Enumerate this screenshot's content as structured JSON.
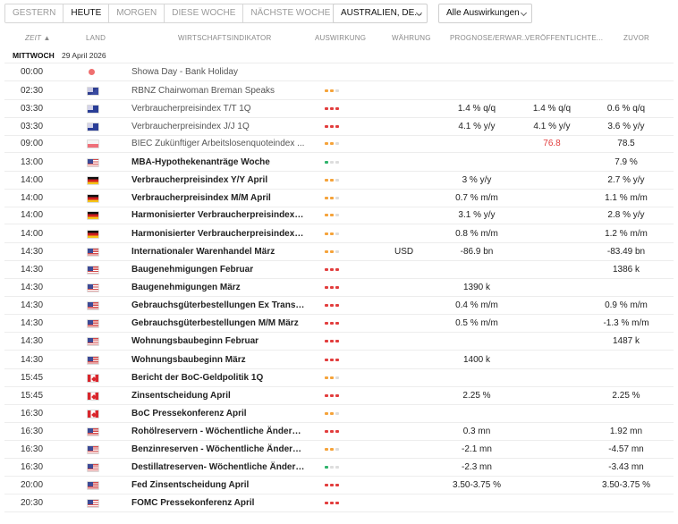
{
  "toolbar": {
    "tabs": [
      "GESTERN",
      "HEUTE",
      "MORGEN",
      "DIESE WOCHE",
      "NÄCHSTE WOCHE"
    ],
    "active_tab": "HEUTE",
    "country_filter": "AUSTRALIEN, DE...",
    "impact_filter": "Alle Auswirkungen"
  },
  "columns": {
    "time": "ZEIT ▲",
    "country": "LAND",
    "indicator": "WIRTSCHAFTSINDIKATOR",
    "impact": "AUSWIRKUNG",
    "currency": "WÄHRUNG",
    "forecast": "PROGNOSE/ERWAR...",
    "actual": "VERÖFFENTLICHTE...",
    "previous": "ZUVOR"
  },
  "day": {
    "name": "MITTWOCH",
    "date": "29 April 2026"
  },
  "events": [
    {
      "time": "00:00",
      "country": "holiday",
      "name": "Showa Day - Bank Holiday",
      "style": "light",
      "impact": "none",
      "currency": "",
      "forecast": "",
      "actual": "",
      "previous": ""
    },
    {
      "time": "02:30",
      "country": "nz",
      "name": "RBNZ Chairwoman Breman Speaks",
      "style": "light",
      "impact": "med",
      "currency": "",
      "forecast": "",
      "actual": "",
      "previous": ""
    },
    {
      "time": "03:30",
      "country": "au",
      "name": "Verbraucherpreisindex T/T 1Q",
      "style": "light",
      "impact": "high",
      "currency": "",
      "forecast": "1.4 % q/q",
      "actual": "1.4 % q/q",
      "previous": "0.6 % q/q"
    },
    {
      "time": "03:30",
      "country": "au",
      "name": "Verbraucherpreisindex J/J 1Q",
      "style": "light",
      "impact": "high",
      "currency": "",
      "forecast": "4.1 % y/y",
      "actual": "4.1 % y/y",
      "previous": "3.6 % y/y"
    },
    {
      "time": "09:00",
      "country": "pl",
      "name": "BIEC Zukünftiger Arbeitslosenquoteindex ...",
      "style": "light",
      "impact": "med",
      "currency": "",
      "forecast": "",
      "actual": "76.8",
      "actual_color": "red",
      "previous": "78.5"
    },
    {
      "time": "13:00",
      "country": "us",
      "name": "MBA-Hypothekenanträge Woche",
      "style": "bold",
      "impact": "low",
      "currency": "",
      "forecast": "",
      "actual": "",
      "previous": "7.9 %"
    },
    {
      "time": "14:00",
      "country": "de",
      "name": "Verbraucherpreisindex Y/Y April",
      "style": "bold",
      "impact": "med",
      "currency": "",
      "forecast": "3 % y/y",
      "actual": "",
      "previous": "2.7 % y/y"
    },
    {
      "time": "14:00",
      "country": "de",
      "name": "Verbraucherpreisindex M/M April",
      "style": "bold",
      "impact": "med",
      "currency": "",
      "forecast": "0.7 % m/m",
      "actual": "",
      "previous": "1.1 % m/m"
    },
    {
      "time": "14:00",
      "country": "de",
      "name": "Harmonisierter Verbraucherpreisindex Y/Y...",
      "style": "bold",
      "impact": "med",
      "currency": "",
      "forecast": "3.1 % y/y",
      "actual": "",
      "previous": "2.8 % y/y"
    },
    {
      "time": "14:00",
      "country": "de",
      "name": "Harmonisierter Verbraucherpreisindex M/...",
      "style": "bold",
      "impact": "med",
      "currency": "",
      "forecast": "0.8 % m/m",
      "actual": "",
      "previous": "1.2 % m/m"
    },
    {
      "time": "14:30",
      "country": "us",
      "name": "Internationaler Warenhandel März",
      "style": "bold",
      "impact": "med",
      "currency": "USD",
      "forecast": "-86.9 bn",
      "actual": "",
      "previous": "-83.49 bn"
    },
    {
      "time": "14:30",
      "country": "us",
      "name": "Baugenehmigungen Februar",
      "style": "bold",
      "impact": "high",
      "currency": "",
      "forecast": "",
      "actual": "",
      "previous": "1386 k"
    },
    {
      "time": "14:30",
      "country": "us",
      "name": "Baugenehmigungen März",
      "style": "bold",
      "impact": "high",
      "currency": "",
      "forecast": "1390 k",
      "actual": "",
      "previous": ""
    },
    {
      "time": "14:30",
      "country": "us",
      "name": "Gebrauchsgüterbestellungen Ex Transport ...",
      "style": "bold",
      "impact": "high",
      "currency": "",
      "forecast": "0.4 % m/m",
      "actual": "",
      "previous": "0.9 % m/m"
    },
    {
      "time": "14:30",
      "country": "us",
      "name": "Gebrauchsgüterbestellungen M/M März",
      "style": "bold",
      "impact": "high",
      "currency": "",
      "forecast": "0.5 % m/m",
      "actual": "",
      "previous": "-1.3 % m/m"
    },
    {
      "time": "14:30",
      "country": "us",
      "name": "Wohnungsbaubeginn Februar",
      "style": "bold",
      "impact": "high",
      "currency": "",
      "forecast": "",
      "actual": "",
      "previous": "1487 k"
    },
    {
      "time": "14:30",
      "country": "us",
      "name": "Wohnungsbaubeginn März",
      "style": "bold",
      "impact": "high",
      "currency": "",
      "forecast": "1400 k",
      "actual": "",
      "previous": ""
    },
    {
      "time": "15:45",
      "country": "ca",
      "name": "Bericht der BoC-Geldpolitik 1Q",
      "style": "bold",
      "impact": "med",
      "currency": "",
      "forecast": "",
      "actual": "",
      "previous": ""
    },
    {
      "time": "15:45",
      "country": "ca",
      "name": "Zinsentscheidung April",
      "style": "bold",
      "impact": "high",
      "currency": "",
      "forecast": "2.25 %",
      "actual": "",
      "previous": "2.25 %"
    },
    {
      "time": "16:30",
      "country": "ca",
      "name": "BoC Pressekonferenz April",
      "style": "bold",
      "impact": "med",
      "currency": "",
      "forecast": "",
      "actual": "",
      "previous": ""
    },
    {
      "time": "16:30",
      "country": "us",
      "name": "Rohölreservern - Wöchentliche Änderung ...",
      "style": "bold",
      "impact": "high",
      "currency": "",
      "forecast": "0.3 mn",
      "actual": "",
      "previous": "1.92 mn"
    },
    {
      "time": "16:30",
      "country": "us",
      "name": "Benzinreserven - Wöchentliche Änderung ...",
      "style": "bold",
      "impact": "med",
      "currency": "",
      "forecast": "-2.1 mn",
      "actual": "",
      "previous": "-4.57 mn"
    },
    {
      "time": "16:30",
      "country": "us",
      "name": "Destillatreserven- Wöchentliche Änderung ...",
      "style": "bold",
      "impact": "low",
      "currency": "",
      "forecast": "-2.3 mn",
      "actual": "",
      "previous": "-3.43 mn"
    },
    {
      "time": "20:00",
      "country": "us",
      "name": "Fed Zinsentscheidung April",
      "style": "bold",
      "impact": "high",
      "currency": "",
      "forecast": "3.50-3.75 %",
      "actual": "",
      "previous": "3.50-3.75 %"
    },
    {
      "time": "20:30",
      "country": "us",
      "name": "FOMC Pressekonferenz April",
      "style": "bold",
      "impact": "high",
      "currency": "",
      "forecast": "",
      "actual": "",
      "previous": ""
    }
  ]
}
